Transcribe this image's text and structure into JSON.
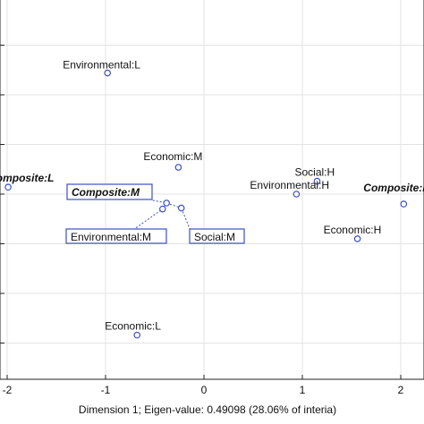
{
  "chart_data": {
    "type": "scatter",
    "title": "",
    "xlabel": "Dimension 1; Eigen-value:  0.49098 (28.06% of interia)",
    "ylabel": "",
    "xlim": [
      -2.05,
      2.05
    ],
    "ylim": [
      -1.75,
      1.75
    ],
    "x_ticks": [
      "-2",
      "-1",
      "0",
      "1",
      "2"
    ],
    "grid": true,
    "marker_color": "#3b4fc4",
    "box_color": "#3b4fc4",
    "points": [
      {
        "name": "Environmental:L",
        "x": -0.98,
        "y": 1.22
      },
      {
        "name": "Economic:M",
        "x": -0.26,
        "y": 0.27
      },
      {
        "name": "Composite:L",
        "x": -1.99,
        "y": 0.07
      },
      {
        "name": "Composite:M",
        "x": -0.38,
        "y": -0.09
      },
      {
        "name": "Environmental:M",
        "x": -0.42,
        "y": -0.15
      },
      {
        "name": "Social:M",
        "x": -0.23,
        "y": -0.14
      },
      {
        "name": "Social:H",
        "x": 1.15,
        "y": 0.13
      },
      {
        "name": "Environmental:H",
        "x": 0.94,
        "y": 0.0
      },
      {
        "name": "Composite:H",
        "x": 2.03,
        "y": -0.1
      },
      {
        "name": "Economic:H",
        "x": 1.56,
        "y": -0.45
      },
      {
        "name": "Economic:L",
        "x": -0.68,
        "y": -1.42
      }
    ]
  }
}
